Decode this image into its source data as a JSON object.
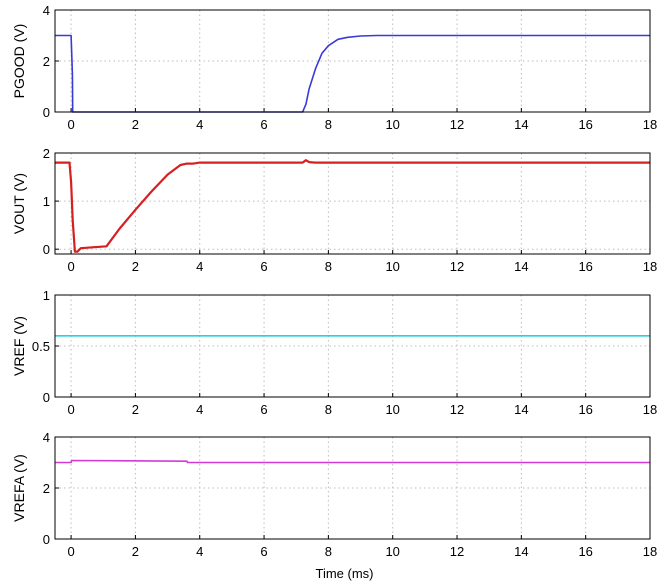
{
  "chart_data": [
    {
      "type": "line",
      "ylabel": "PGOOD (V)",
      "xlabel": "",
      "xlim": [
        -0.5,
        18
      ],
      "ylim": [
        0,
        4
      ],
      "xticks": [
        "0",
        "2",
        "4",
        "6",
        "8",
        "10",
        "12",
        "14",
        "16",
        "18"
      ],
      "yticks": [
        "0",
        "2",
        "4"
      ],
      "grid": true,
      "series": [
        {
          "color": "#3a3ad8",
          "x": [
            -0.5,
            0.0,
            0.04,
            0.05,
            7.2,
            7.3,
            7.4,
            7.6,
            7.8,
            8.0,
            8.3,
            8.6,
            9.0,
            9.5,
            10,
            18
          ],
          "y": [
            3.0,
            3.0,
            1.5,
            0.0,
            0.0,
            0.3,
            0.9,
            1.7,
            2.3,
            2.6,
            2.85,
            2.93,
            2.98,
            3.0,
            3.0,
            3.0
          ]
        }
      ]
    },
    {
      "type": "line",
      "ylabel": "VOUT (V)",
      "xlabel": "",
      "xlim": [
        -0.5,
        18
      ],
      "ylim": [
        -0.1,
        2
      ],
      "xticks": [
        "0",
        "2",
        "4",
        "6",
        "8",
        "10",
        "12",
        "14",
        "16",
        "18"
      ],
      "yticks": [
        "0",
        "1",
        "2"
      ],
      "grid": true,
      "series": [
        {
          "color": "#d62020",
          "x": [
            -0.5,
            -0.05,
            0.0,
            0.05,
            0.12,
            0.2,
            0.3,
            1.1,
            1.5,
            2.0,
            2.5,
            3.0,
            3.4,
            3.6,
            3.8,
            4.0,
            7.2,
            7.3,
            7.4,
            7.6,
            18
          ],
          "y": [
            1.8,
            1.8,
            1.4,
            0.6,
            -0.05,
            -0.05,
            0.02,
            0.06,
            0.42,
            0.82,
            1.2,
            1.55,
            1.75,
            1.78,
            1.78,
            1.8,
            1.8,
            1.85,
            1.81,
            1.8,
            1.8
          ]
        }
      ]
    },
    {
      "type": "line",
      "ylabel": "VREF (V)",
      "xlabel": "",
      "xlim": [
        -0.5,
        18
      ],
      "ylim": [
        0,
        1
      ],
      "xticks": [
        "0",
        "2",
        "4",
        "6",
        "8",
        "10",
        "12",
        "14",
        "16",
        "18"
      ],
      "yticks": [
        "0",
        "0.5",
        "1"
      ],
      "grid": true,
      "series": [
        {
          "color": "#22d3e0",
          "x": [
            -0.5,
            18
          ],
          "y": [
            0.6,
            0.6
          ]
        }
      ]
    },
    {
      "type": "line",
      "ylabel": "VREFA (V)",
      "xlabel": "Time (ms)",
      "xlim": [
        -0.5,
        18
      ],
      "ylim": [
        0,
        4
      ],
      "xticks": [
        "0",
        "2",
        "4",
        "6",
        "8",
        "10",
        "12",
        "14",
        "16",
        "18"
      ],
      "yticks": [
        "0",
        "2",
        "4"
      ],
      "grid": true,
      "series": [
        {
          "color": "#d23ad6",
          "x": [
            -0.5,
            0.0,
            0.02,
            3.6,
            3.62,
            18
          ],
          "y": [
            3.0,
            3.0,
            3.08,
            3.05,
            3.0,
            3.0
          ]
        }
      ]
    }
  ]
}
